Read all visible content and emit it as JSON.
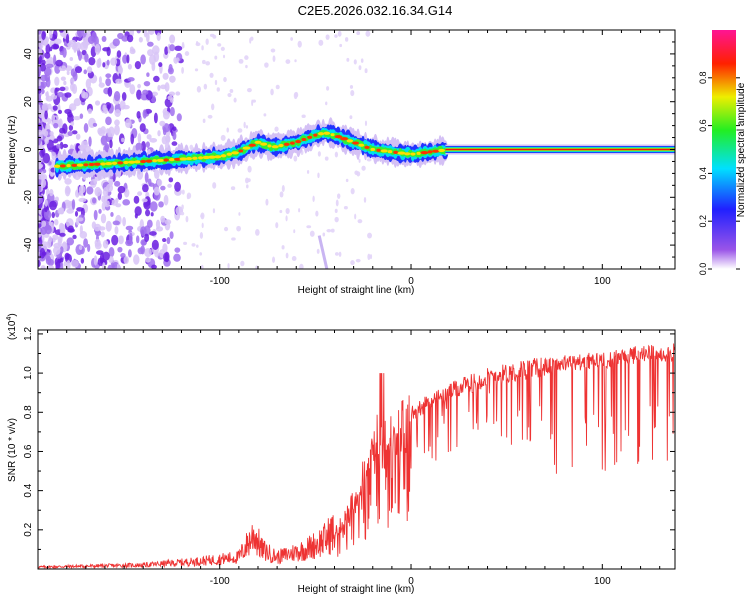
{
  "title": "C2E5.2026.032.16.34.G14",
  "chart_data": [
    {
      "type": "heatmap",
      "title": "C2E5.2026.032.16.34.G14",
      "xlabel": "Height of straight line (km)",
      "ylabel": "Frequency (Hz)",
      "xlim": [
        -195,
        138
      ],
      "ylim": [
        -50,
        50
      ],
      "xticks": [
        -100,
        0,
        100
      ],
      "xtick_labels": [
        "-100",
        "0",
        "100"
      ],
      "yticks": [
        -40,
        -20,
        0,
        20,
        40
      ],
      "ytick_labels": [
        "-40",
        "-20",
        "0",
        "20",
        "40"
      ],
      "ridge": {
        "description": "dominant frequency trace",
        "x": [
          -185,
          -160,
          -140,
          -120,
          -100,
          -90,
          -80,
          -72,
          -60,
          -50,
          -45,
          -40,
          -30,
          -20,
          -10,
          0,
          10,
          20,
          138
        ],
        "y": [
          -7,
          -6,
          -5,
          -4,
          -3,
          -1,
          3,
          1,
          3,
          6,
          7,
          6,
          3,
          0,
          -1,
          -2,
          -1,
          0,
          0
        ]
      },
      "colorbar": {
        "label": "Normalized spectral amplitude",
        "range": [
          0,
          1
        ],
        "ticks": [
          0.0,
          0.2,
          0.4,
          0.6,
          0.8
        ],
        "tick_labels": [
          "0.0",
          "0.2",
          "0.4",
          "0.6",
          "0.8"
        ],
        "colors": [
          "#ffffff",
          "#8a2be2",
          "#0000ff",
          "#00ffff",
          "#00ff00",
          "#ffff00",
          "#ff0000",
          "#ff1493"
        ]
      }
    },
    {
      "type": "line",
      "title": "",
      "xlabel": "Height of straight line (km)",
      "ylabel": "SNR (10 * v/v)",
      "multiplier_label": "(x10",
      "multiplier_exp": "4",
      "multiplier_close": ")",
      "xlim": [
        -195,
        138
      ],
      "ylim": [
        0,
        1.22
      ],
      "xticks": [
        -100,
        0,
        100
      ],
      "xtick_labels": [
        "-100",
        "0",
        "100"
      ],
      "yticks": [
        0.2,
        0.4,
        0.6,
        0.8,
        1.0,
        1.2
      ],
      "ytick_labels": [
        "0.2",
        "0.4",
        "0.6",
        "0.8",
        "1.0",
        "1.2"
      ],
      "color": "#ee3333",
      "envelope": {
        "x": [
          -195,
          -140,
          -110,
          -90,
          -82,
          -78,
          -70,
          -55,
          -45,
          -38,
          -32,
          -28,
          -24,
          -20,
          -16,
          -10,
          -5,
          0,
          10,
          20,
          30,
          40,
          60,
          80,
          100,
          120,
          138
        ],
        "y": [
          0.01,
          0.02,
          0.04,
          0.06,
          0.18,
          0.1,
          0.06,
          0.1,
          0.15,
          0.22,
          0.32,
          0.45,
          0.58,
          0.7,
          0.75,
          0.74,
          0.78,
          0.82,
          0.88,
          0.93,
          0.97,
          1.01,
          1.05,
          1.08,
          1.1,
          1.13,
          1.14
        ]
      }
    }
  ]
}
